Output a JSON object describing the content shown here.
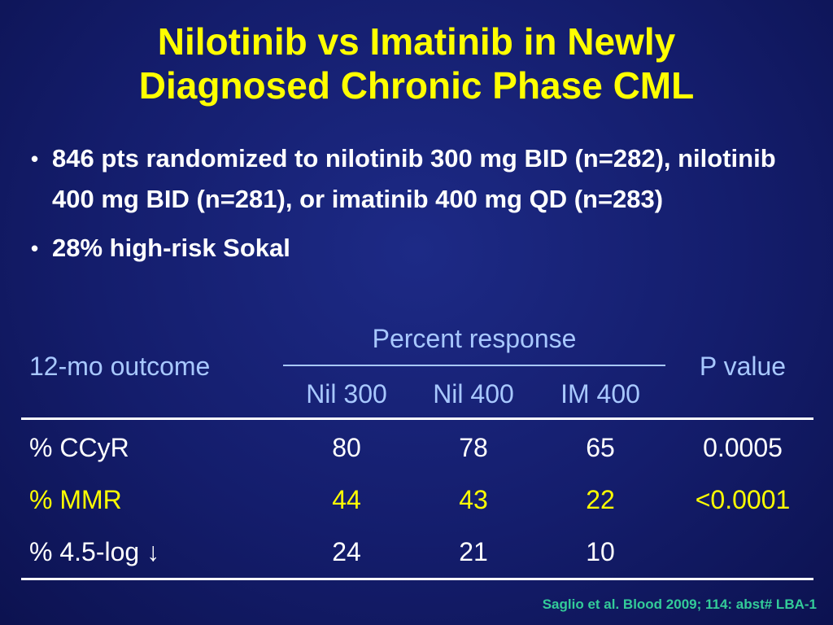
{
  "title": {
    "line1": "Nilotinib vs Imatinib in Newly",
    "line2": "Diagnosed Chronic Phase CML"
  },
  "bullets": [
    "846 pts randomized to nilotinib 300 mg BID (n=282), nilotinib 400 mg BID (n=281), or imatinib 400 mg QD (n=283)",
    "28% high-risk Sokal"
  ],
  "bullet_glyph": "•",
  "table": {
    "col_outcome": "12-mo outcome",
    "group_header": "Percent response",
    "col_pvalue": "P value",
    "sub_headers": [
      "Nil 300",
      "Nil 400",
      "IM 400"
    ],
    "rows": [
      {
        "label": "% CCyR",
        "values": [
          "80",
          "78",
          "65"
        ],
        "pvalue": "0.0005"
      },
      {
        "label": "% MMR",
        "values": [
          "44",
          "43",
          "22"
        ],
        "pvalue": "<0.0001"
      },
      {
        "label": "% 4.5-log ↓",
        "values": [
          "24",
          "21",
          "10"
        ],
        "pvalue": ""
      }
    ]
  },
  "citation": "Saglio et al. Blood 2009; 114: abst# LBA-1",
  "colors": {
    "title": "#ffff00",
    "header": "#a8c8ff",
    "highlight_row": "#ffff00",
    "citation": "#33cc99",
    "background": "#141d6c"
  }
}
